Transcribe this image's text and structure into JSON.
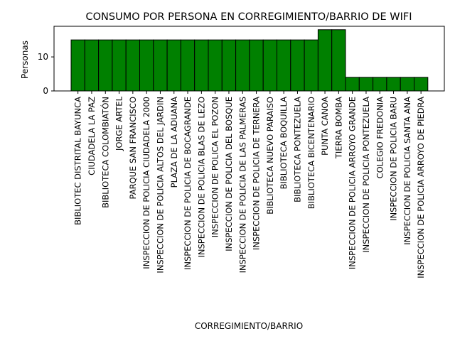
{
  "chart_data": {
    "type": "bar",
    "title": "CONSUMO POR PERSONA EN CORREGIMIENTO/BARRIO DE WIFI",
    "xlabel": "CORREGIMIENTO/BARRIO",
    "ylabel": "Personas",
    "ylim": [
      0,
      19
    ],
    "yticks": [
      0,
      10
    ],
    "grid": false,
    "bar_color": "#008000",
    "edge_color": "#000000",
    "categories": [
      "BIBLIOTEC DISTRITAL BAYUNCA",
      "CIUDADELA LA PAZ",
      "BIBLIOTECA COLOMBIATÓN",
      "JORGE ARTEL",
      "PARQUE SAN FRANCISCO",
      "INSPECCION DE POLICIA CIUDADELA 2000",
      "INSPECCION DE POLICIA ALTOS DEL JARDIN",
      "PLAZA DE LA ADUANA",
      "INSPECCION DE POLICIA DE BOCAGRANDE",
      "INSPECCION DE POLICIA BLAS DE LEZO",
      "INSPECCION DE POLICA EL POZON",
      "INSPECCION DE POLICIA  DEL BOSQUE",
      "INSPECCION DE POLICIA DE LAS PALMERAS",
      "INSPECCION DE POLICIA DE TERNERA",
      "BIBLIOTECA NUEVO PARAISO",
      "BIBLIOTECA BOQUILLA",
      "BIBLIOTECA PONTEZUELA",
      "BIBLIOTECA BICENTENARIO",
      "PUNTA CANOA",
      "TIERRA BOMBA",
      "INSPECCION DE POLICIA ARROYO GRANDE",
      "INSPECCION DE POLICIA PONTEZUELA",
      "COLEGIO FREDONIA",
      "INSPECCION DE POLICIA BARU",
      "INSPECCION DE POLICIA SANTA ANA",
      "INSPECCION DE POLICIA ARROYO DE PIEDRA"
    ],
    "values": [
      15,
      15,
      15,
      15,
      15,
      15,
      15,
      15,
      15,
      15,
      15,
      15,
      15,
      15,
      15,
      15,
      15,
      15,
      18,
      18,
      4,
      4,
      4,
      4,
      4,
      4
    ]
  }
}
